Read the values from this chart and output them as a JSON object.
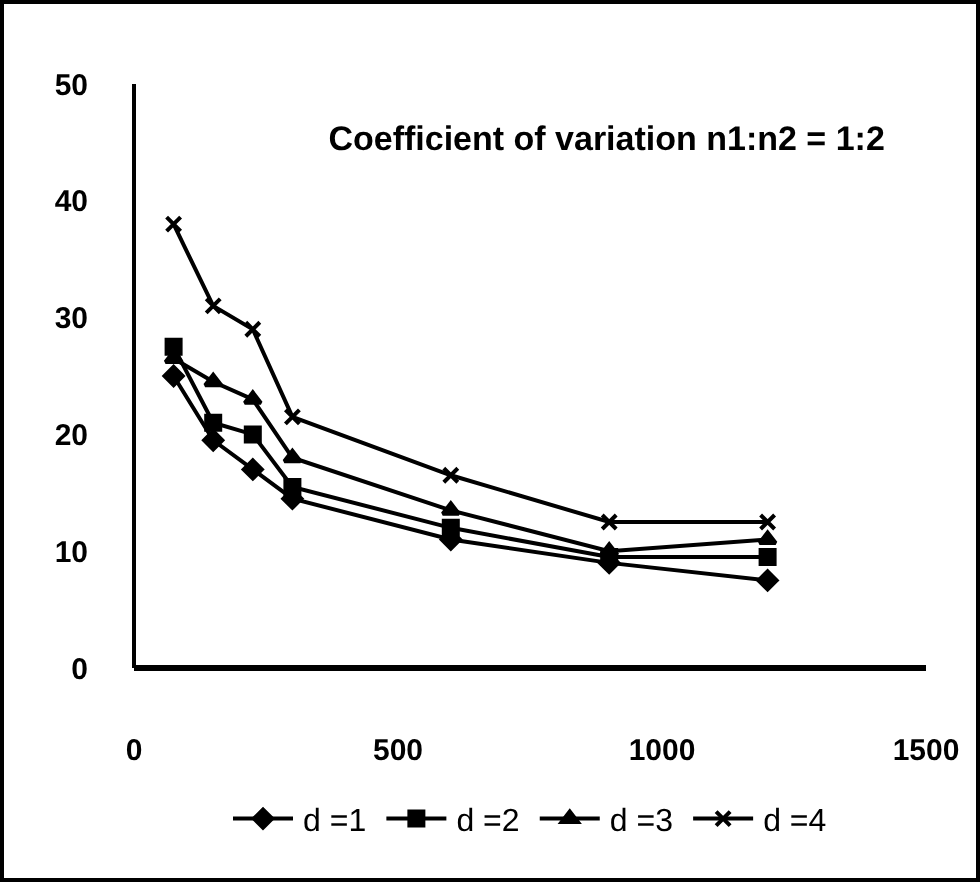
{
  "chart_data": {
    "type": "line",
    "title": "Coefficient of variation n1:n2 = 1:2",
    "x": [
      75,
      150,
      225,
      300,
      600,
      900,
      1200
    ],
    "series": [
      {
        "name": "d =1",
        "color": "#000000",
        "marker": "diamond",
        "values": [
          25,
          19.5,
          17,
          14.5,
          11,
          9,
          7.5
        ]
      },
      {
        "name": "d =2",
        "color": "#000000",
        "marker": "square",
        "values": [
          27.5,
          21,
          20,
          15.5,
          12,
          9.5,
          9.5
        ]
      },
      {
        "name": "d =3",
        "color": "#000000",
        "marker": "triangle",
        "values": [
          26.5,
          24.5,
          23,
          18,
          13.5,
          10,
          11
        ]
      },
      {
        "name": "d =4",
        "color": "#000000",
        "marker": "cross",
        "values": [
          38,
          31,
          29,
          21.5,
          16.5,
          12.5,
          12.5
        ]
      }
    ],
    "xlim": [
      0,
      1500
    ],
    "xticks": [
      0,
      500,
      1000,
      1500
    ],
    "ylim": [
      0,
      50
    ],
    "yticks": [
      0,
      10,
      20,
      30,
      40,
      50
    ],
    "grid": false,
    "legend": "bottom",
    "line_style": "solid"
  }
}
